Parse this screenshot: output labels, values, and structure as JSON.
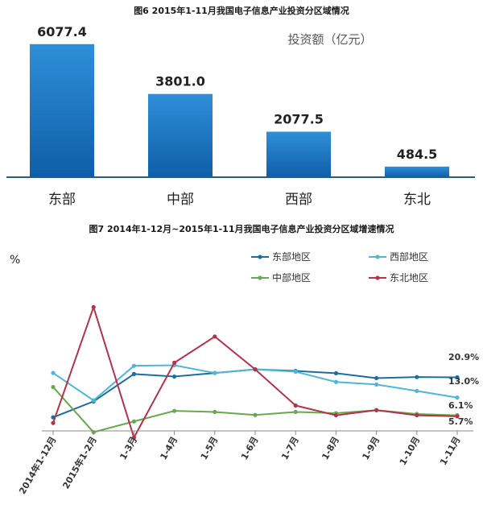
{
  "chart_data": [
    {
      "type": "bar",
      "title": "图6 2015年1-11月我国电子信息产业投资分区域情况",
      "unit_label": "投资额（亿元）",
      "categories": [
        "东部",
        "中部",
        "西部",
        "东北"
      ],
      "values": [
        6077.4,
        3801.0,
        2077.5,
        484.5
      ],
      "value_labels": [
        "6077.4",
        "3801.0",
        "2077.5",
        "484.5"
      ],
      "ylim": [
        0,
        6400
      ],
      "grid": false,
      "colors": {
        "bar_top": "#2f8fd8",
        "bar_bottom": "#0f5ea8",
        "axis": "#2a5a86"
      }
    },
    {
      "type": "line",
      "title": "图7 2014年1-12月~2015年1-11月我国电子信息产业投资分区域增速情况",
      "ylabel": "%",
      "categories": [
        "2014年1-12月",
        "2015年1-2月",
        "1-3月",
        "1-4月",
        "1-5月",
        "1-6月",
        "1-7月",
        "1-8月",
        "1-9月",
        "1-10月",
        "1-11月"
      ],
      "ylim": [
        0,
        55
      ],
      "grid": false,
      "legend_position": "top-right",
      "series": [
        {
          "name": "东部地区",
          "color": "#1b6e9e",
          "values": [
            5.3,
            11.5,
            22.2,
            21.2,
            22.6,
            24.0,
            23.4,
            22.5,
            20.6,
            21.0,
            20.9
          ]
        },
        {
          "name": "西部地区",
          "color": "#4eb7d8",
          "values": [
            22.6,
            11.9,
            25.4,
            25.6,
            22.6,
            24.0,
            23.1,
            19.1,
            18.1,
            15.6,
            13.0
          ]
        },
        {
          "name": "中部地区",
          "color": "#6aa84f",
          "values": [
            17.1,
            -0.5,
            3.7,
            7.8,
            7.4,
            6.2,
            7.4,
            6.9,
            8.1,
            6.6,
            6.1
          ]
        },
        {
          "name": "东北地区",
          "color": "#b2334a",
          "values": [
            3.1,
            48.3,
            -2.6,
            26.6,
            36.8,
            24.0,
            9.9,
            6.1,
            8.1,
            6.1,
            5.7
          ]
        }
      ],
      "end_labels": [
        "20.9%",
        "13.0%",
        "6.1%",
        "5.7%"
      ]
    }
  ]
}
